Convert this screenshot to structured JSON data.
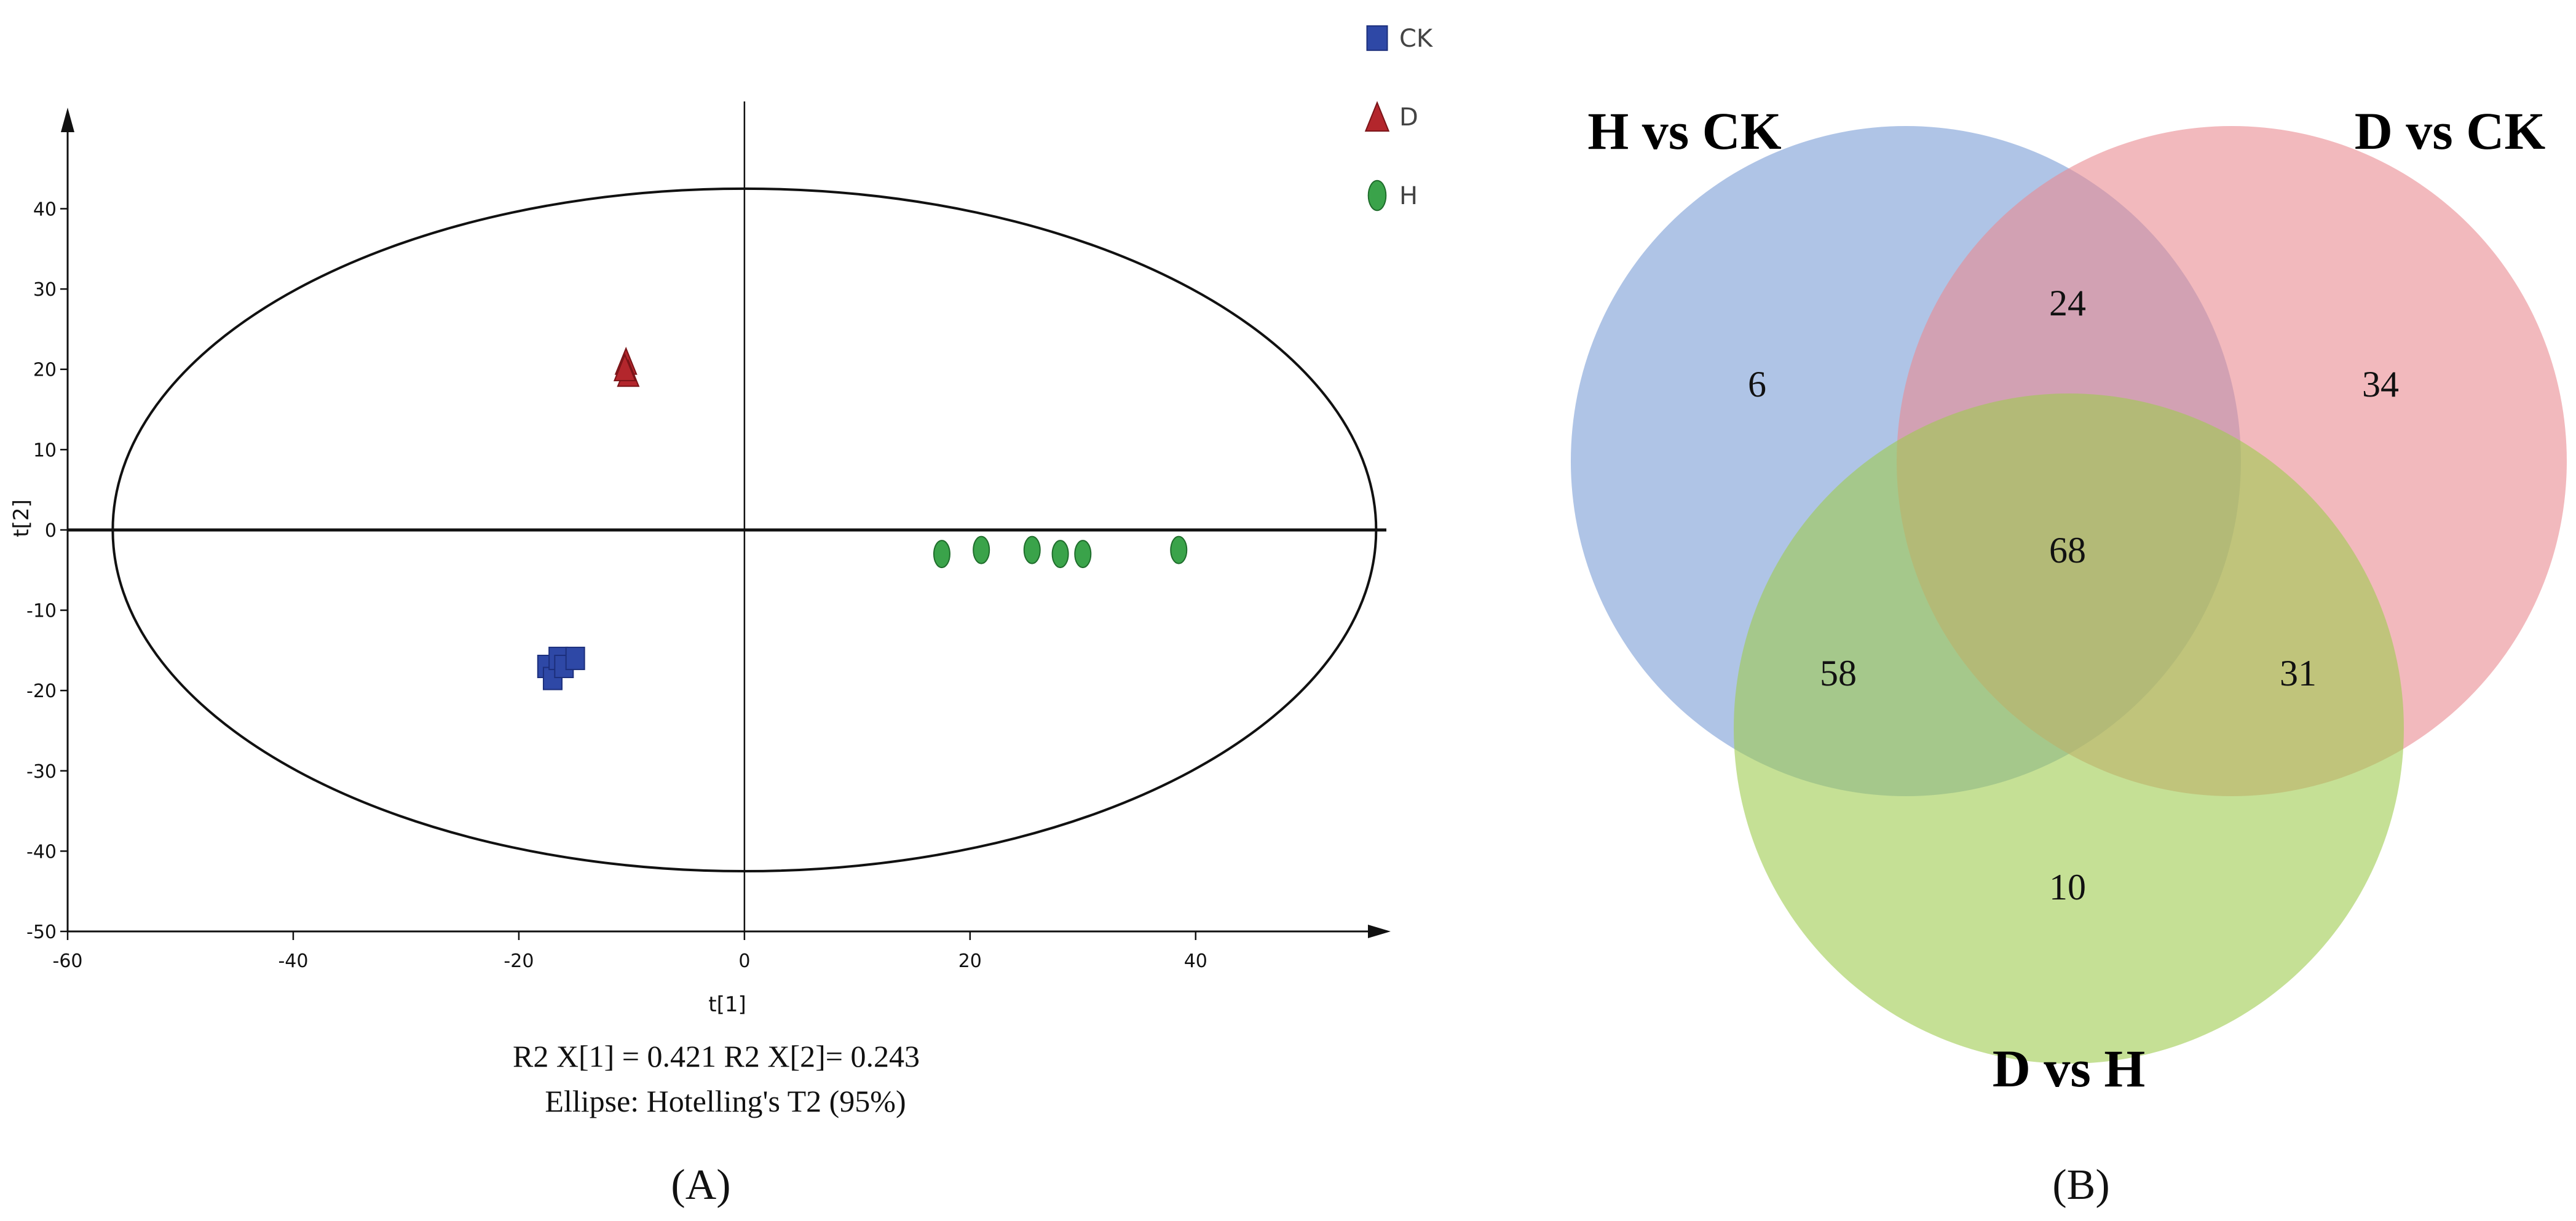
{
  "chart_data": [
    {
      "type": "scatter",
      "panel_label": "(A)",
      "xlabel": "t[1]",
      "ylabel": "t[2]",
      "xlim": [
        -60,
        55
      ],
      "ylim": [
        -50,
        48
      ],
      "x_ticks": [
        -60,
        -40,
        -20,
        0,
        20,
        40
      ],
      "y_ticks": [
        40,
        30,
        20,
        10,
        0,
        -10,
        -20,
        -30,
        -40,
        -50
      ],
      "legend": {
        "placement": "top-right"
      },
      "series": [
        {
          "name": "CK",
          "marker": "square",
          "color": "#2e48a6",
          "points": [
            [
              -17.5,
              -17
            ],
            [
              -17,
              -18.5
            ],
            [
              -16.5,
              -16
            ],
            [
              -16,
              -17
            ],
            [
              -15,
              -16
            ]
          ]
        },
        {
          "name": "D",
          "marker": "triangle",
          "color": "#b3262c",
          "points": [
            [
              -10.5,
              21
            ],
            [
              -10.3,
              19.5
            ],
            [
              -10.6,
              20.2
            ]
          ]
        },
        {
          "name": "H",
          "marker": "ellipse",
          "color": "#3aa34a",
          "points": [
            [
              17.5,
              -3
            ],
            [
              21,
              -2.5
            ],
            [
              25.5,
              -2.5
            ],
            [
              28,
              -3
            ],
            [
              30,
              -3
            ],
            [
              38.5,
              -2.5
            ]
          ]
        }
      ],
      "ellipse": {
        "cx": 0,
        "cy": 0,
        "rx": 56,
        "ry": 42.5
      },
      "annotations": [
        "R2 X[1] = 0.421   R2 X[2]= 0.243",
        "Ellipse: Hotelling's T2 (95%)"
      ]
    },
    {
      "type": "venn",
      "panel_label": "(B)",
      "sets": [
        {
          "name": "H vs CK",
          "color": "#7a9cd6"
        },
        {
          "name": "D vs CK",
          "color": "#ea8b91"
        },
        {
          "name": "D vs H",
          "color": "#9fcc4e"
        }
      ],
      "regions": {
        "H_only": 6,
        "D_CK_only": 34,
        "DH_only": 10,
        "H_and_DCK": 24,
        "H_and_DH": 58,
        "DCK_and_DH": 31,
        "all_three": 68
      }
    }
  ]
}
